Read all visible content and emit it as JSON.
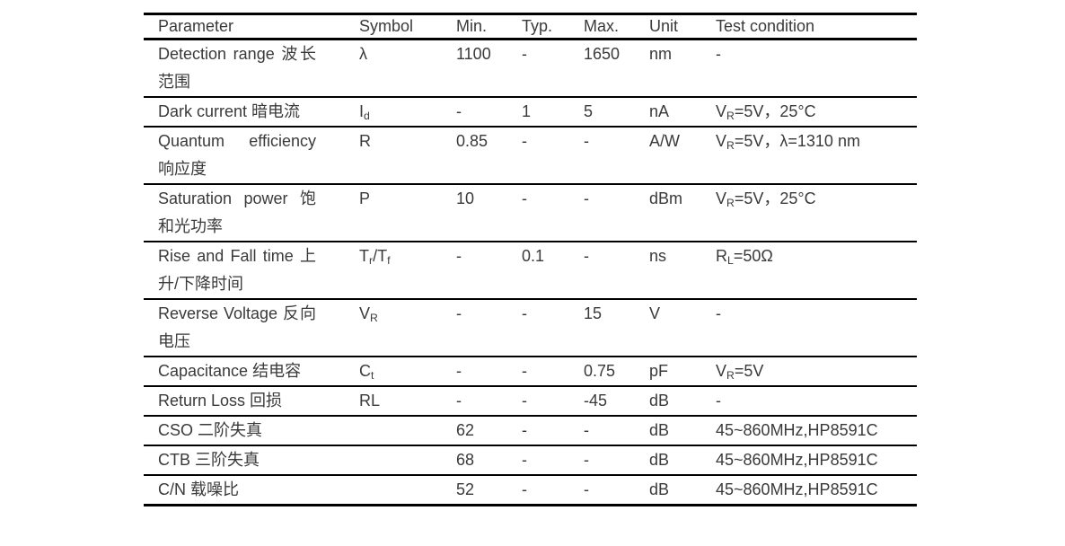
{
  "page": {
    "background": "#ffffff"
  },
  "table": {
    "columns": [
      "Parameter",
      "Symbol",
      "Min.",
      "Typ.",
      "Max.",
      "Unit",
      "Test condition"
    ],
    "rows": [
      {
        "parameter": "Detection range 波长范围",
        "symbol": "λ",
        "min": "1100",
        "typ": "-",
        "max": "1650",
        "unit": "nm",
        "test": "-"
      },
      {
        "parameter": "Dark current 暗电流",
        "symbol": "I_{d}",
        "min": "-",
        "typ": "1",
        "max": "5",
        "unit": "nA",
        "test": "V_{R}=5V，25°C"
      },
      {
        "parameter": "Quantum efficiency 响应度",
        "symbol": "R",
        "min": "0.85",
        "typ": "-",
        "max": "-",
        "unit": "A/W",
        "test": "V_{R}=5V，λ=1310 nm"
      },
      {
        "parameter": "Saturation power 饱和光功率",
        "symbol": "P",
        "min": "10",
        "typ": "-",
        "max": "-",
        "unit": "dBm",
        "test": "V_{R}=5V，25°C"
      },
      {
        "parameter": "Rise and Fall time 上升/下降时间",
        "symbol": "T_{r}/T_{f}",
        "min": "-",
        "typ": "0.1",
        "max": "-",
        "unit": "ns",
        "test": "R_{L}=50Ω"
      },
      {
        "parameter": "Reverse Voltage 反向电压",
        "symbol": "V_{R}",
        "min": "-",
        "typ": "-",
        "max": "15",
        "unit": "V",
        "test": "-"
      },
      {
        "parameter": "Capacitance 结电容",
        "symbol": "C_{t}",
        "min": "-",
        "typ": "-",
        "max": "0.75",
        "unit": "pF",
        "test": "V_{R}=5V"
      },
      {
        "parameter": "Return Loss 回损",
        "symbol": "RL",
        "min": "-",
        "typ": "-",
        "max": "-45",
        "unit": "dB",
        "test": "-"
      },
      {
        "parameter": "CSO 二阶失真",
        "symbol": "",
        "min": "62",
        "typ": "-",
        "max": "-",
        "unit": "dB",
        "test": "45~860MHz,HP8591C"
      },
      {
        "parameter": "CTB 三阶失真",
        "symbol": "",
        "min": "68",
        "typ": "-",
        "max": "-",
        "unit": "dB",
        "test": "45~860MHz,HP8591C"
      },
      {
        "parameter": "C/N 载噪比",
        "symbol": "",
        "min": "52",
        "typ": "-",
        "max": "-",
        "unit": "dB",
        "test": "45~860MHz,HP8591C"
      }
    ],
    "style": {
      "text_color": "#3a3a3a",
      "border_color": "#000000",
      "background": "#ffffff"
    }
  }
}
